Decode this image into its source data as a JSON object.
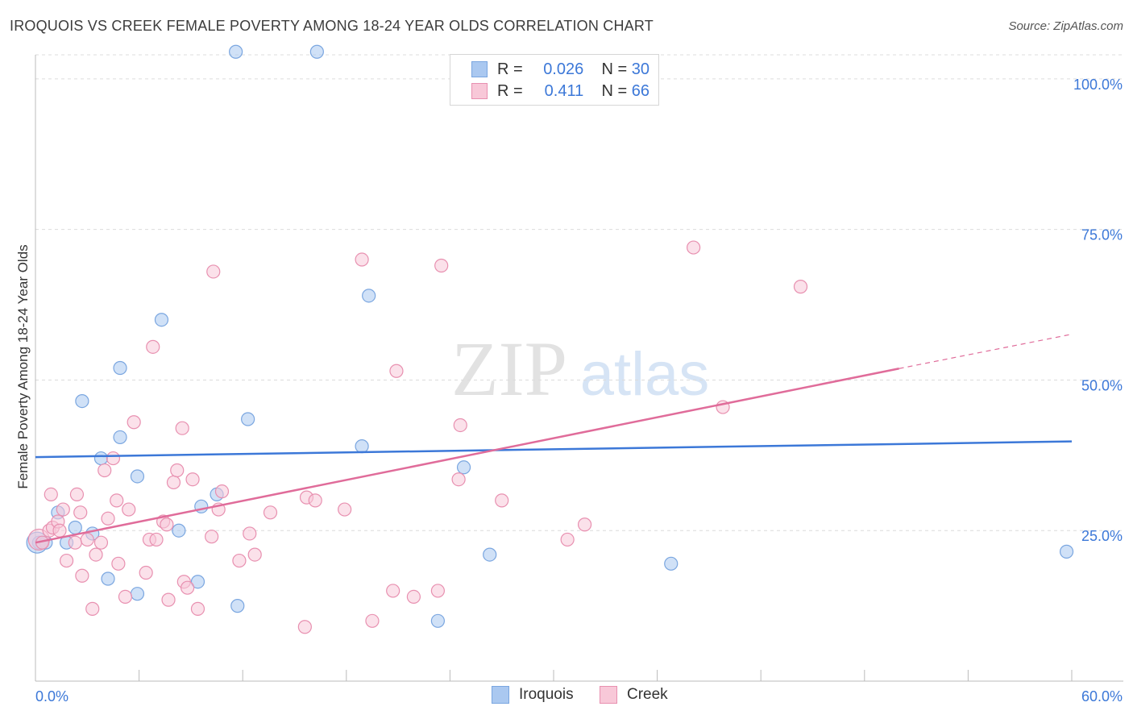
{
  "header": {
    "title": "IROQUOIS VS CREEK FEMALE POVERTY AMONG 18-24 YEAR OLDS CORRELATION CHART",
    "source": "Source: ZipAtlas.com"
  },
  "legend": {
    "rows": [
      {
        "r_label": "R =",
        "r_value": "0.026",
        "n_label": "N =",
        "n_value": "30",
        "color": "#aac8f0",
        "border": "#7aa6e0"
      },
      {
        "r_label": "R =",
        "r_value": "0.411",
        "n_label": "N =",
        "n_value": "66",
        "color": "#f8c8d8",
        "border": "#e890b0"
      }
    ]
  },
  "bottom_legend": [
    "Iroquois",
    "Creek"
  ],
  "watermark": {
    "zip": "ZIP",
    "atlas": "atlas"
  },
  "chart_data": {
    "type": "scatter",
    "title": "IROQUOIS VS CREEK FEMALE POVERTY AMONG 18-24 YEAR OLDS CORRELATION CHART",
    "xlabel": "",
    "ylabel": "Female Poverty Among 18-24 Year Olds",
    "xlim": [
      0,
      60
    ],
    "ylim": [
      0,
      104
    ],
    "x_tick_labels": [
      "0.0%",
      "60.0%"
    ],
    "y_ticks": [
      25,
      50,
      75,
      100
    ],
    "y_tick_labels": [
      "25.0%",
      "50.0%",
      "75.0%",
      "100.0%"
    ],
    "grid": true,
    "legend_placement": "top-center",
    "colors": {
      "iroquois": "#3c78d8",
      "creek": "#e06c9a",
      "iroquois_fill": "#aac8f0",
      "creek_fill": "#f8c8d8"
    },
    "series": [
      {
        "name": "Iroquois",
        "points": [
          [
            0.2,
            23
          ],
          [
            0.6,
            23
          ],
          [
            1.3,
            28
          ],
          [
            1.8,
            23
          ],
          [
            2.3,
            25.5
          ],
          [
            2.7,
            46.5
          ],
          [
            3.3,
            24.5
          ],
          [
            3.8,
            37
          ],
          [
            4.2,
            17
          ],
          [
            4.9,
            40.5
          ],
          [
            4.9,
            52
          ],
          [
            5.9,
            14.5
          ],
          [
            5.9,
            34
          ],
          [
            7.3,
            60
          ],
          [
            8.3,
            25
          ],
          [
            9.4,
            16.5
          ],
          [
            9.6,
            29
          ],
          [
            10.5,
            31
          ],
          [
            11.6,
            104.5
          ],
          [
            11.7,
            12.5
          ],
          [
            12.3,
            43.5
          ],
          [
            16.3,
            104.5
          ],
          [
            18.9,
            39
          ],
          [
            19.3,
            64
          ],
          [
            23.3,
            10
          ],
          [
            24.8,
            35.5
          ],
          [
            26.3,
            21
          ],
          [
            36.8,
            19.5
          ],
          [
            59.7,
            21.5
          ],
          [
            0.1,
            23
          ]
        ],
        "trend": {
          "x": [
            0,
            60
          ],
          "y": [
            37.2,
            39.8
          ]
        }
      },
      {
        "name": "Creek",
        "points": [
          [
            0.2,
            23.5
          ],
          [
            0.4,
            23
          ],
          [
            0.8,
            25
          ],
          [
            0.9,
            31
          ],
          [
            1.0,
            25.5
          ],
          [
            1.3,
            26.5
          ],
          [
            1.4,
            25
          ],
          [
            1.6,
            28.5
          ],
          [
            1.8,
            20
          ],
          [
            2.3,
            23
          ],
          [
            2.4,
            31
          ],
          [
            2.6,
            28
          ],
          [
            2.7,
            17.5
          ],
          [
            3.0,
            23.5
          ],
          [
            3.3,
            12
          ],
          [
            3.5,
            21
          ],
          [
            3.8,
            23
          ],
          [
            4.0,
            35
          ],
          [
            4.2,
            27
          ],
          [
            4.5,
            37
          ],
          [
            4.7,
            30
          ],
          [
            4.8,
            19.5
          ],
          [
            5.2,
            14
          ],
          [
            5.4,
            28.5
          ],
          [
            5.7,
            43
          ],
          [
            6.4,
            18
          ],
          [
            6.6,
            23.5
          ],
          [
            6.8,
            55.5
          ],
          [
            7.0,
            23.5
          ],
          [
            7.4,
            26.5
          ],
          [
            7.6,
            26
          ],
          [
            7.7,
            13.5
          ],
          [
            8.0,
            33
          ],
          [
            8.2,
            35
          ],
          [
            8.5,
            42
          ],
          [
            8.6,
            16.5
          ],
          [
            8.8,
            15.5
          ],
          [
            9.1,
            33.5
          ],
          [
            9.4,
            12
          ],
          [
            10.2,
            24
          ],
          [
            10.3,
            68
          ],
          [
            10.6,
            28.5
          ],
          [
            10.8,
            31.5
          ],
          [
            11.8,
            20
          ],
          [
            12.4,
            24.5
          ],
          [
            12.7,
            21
          ],
          [
            13.6,
            28
          ],
          [
            15.6,
            9
          ],
          [
            15.7,
            30.5
          ],
          [
            16.2,
            30
          ],
          [
            17.9,
            28.5
          ],
          [
            18.9,
            70
          ],
          [
            19.5,
            10
          ],
          [
            20.9,
            51.5
          ],
          [
            20.7,
            15
          ],
          [
            21.9,
            14
          ],
          [
            23.3,
            15
          ],
          [
            23.5,
            69
          ],
          [
            24.5,
            33.5
          ],
          [
            24.6,
            42.5
          ],
          [
            27.0,
            30
          ],
          [
            30.8,
            23.5
          ],
          [
            31.8,
            26
          ],
          [
            38.1,
            72
          ],
          [
            39.8,
            45.5
          ],
          [
            44.3,
            65.5
          ]
        ],
        "trend": {
          "x": [
            0,
            50
          ],
          "y": [
            23,
            51.9
          ]
        },
        "trend_dashed": {
          "x": [
            50,
            60
          ],
          "y": [
            51.9,
            57.6
          ]
        }
      }
    ]
  }
}
